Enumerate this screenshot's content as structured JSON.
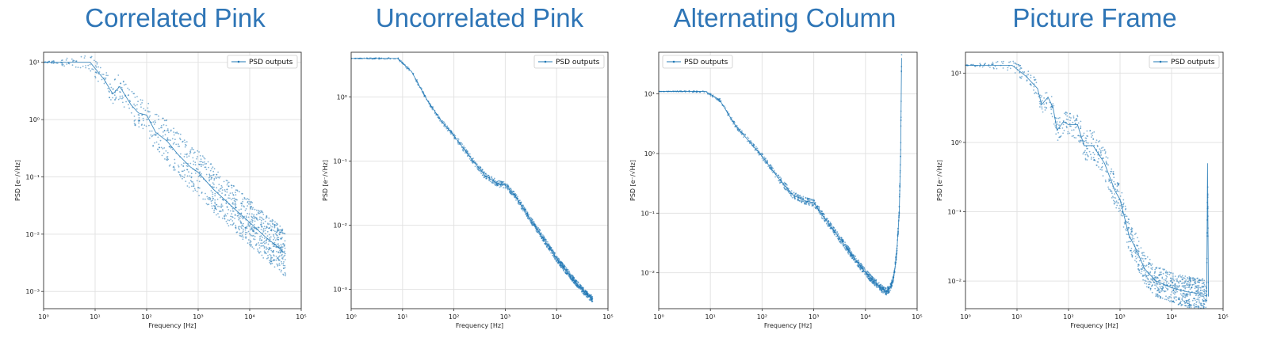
{
  "headings": [
    "Correlated Pink",
    "Uncorrelated Pink",
    "Alternating Column",
    "Picture Frame"
  ],
  "series_color": "#1f77b4",
  "title_color": "#2e75b6",
  "chart_data": [
    {
      "type": "line",
      "title": "",
      "xlabel": "Frequency [Hz]",
      "ylabel": "PSD [e⁻/√Hz]",
      "xscale": "log",
      "yscale": "log",
      "xlim": [
        1,
        100000
      ],
      "ylim": [
        0.0005,
        15
      ],
      "xticks": [
        1,
        10,
        100,
        1000,
        10000,
        100000
      ],
      "yticks": [
        0.001,
        0.01,
        0.1,
        1,
        10
      ],
      "grid": true,
      "legend": "top-right",
      "series": [
        {
          "name": "PSD outputs",
          "x": [
            1,
            8,
            15,
            22,
            30,
            50,
            70,
            100,
            150,
            250,
            400,
            700,
            1000,
            2000,
            5000,
            10000,
            20000,
            35000,
            50000
          ],
          "y": [
            10,
            10,
            5,
            2.8,
            3.8,
            1.8,
            1.3,
            1.2,
            0.6,
            0.42,
            0.25,
            0.15,
            0.12,
            0.06,
            0.028,
            0.016,
            0.009,
            0.006,
            0.0045
          ],
          "spread": 0.8
        }
      ]
    },
    {
      "type": "line",
      "title": "",
      "xlabel": "Frequency [Hz]",
      "ylabel": "PSD [e⁻/√Hz]",
      "xscale": "log",
      "yscale": "log",
      "xlim": [
        1,
        100000
      ],
      "ylim": [
        0.0005,
        5
      ],
      "xticks": [
        1,
        10,
        100,
        1000,
        10000,
        100000
      ],
      "yticks": [
        0.001,
        0.01,
        0.1,
        1
      ],
      "grid": true,
      "legend": "top-right",
      "series": [
        {
          "name": "PSD outputs",
          "x": [
            1,
            8,
            15,
            30,
            60,
            100,
            200,
            400,
            700,
            1000,
            1500,
            2500,
            5000,
            10000,
            20000,
            35000,
            50000
          ],
          "y": [
            4,
            4,
            2.5,
            0.9,
            0.4,
            0.25,
            0.12,
            0.06,
            0.045,
            0.042,
            0.03,
            0.016,
            0.007,
            0.003,
            0.0015,
            0.0009,
            0.0007
          ],
          "spread": 0.1
        }
      ]
    },
    {
      "type": "line",
      "title": "",
      "xlabel": "Frequency [Hz]",
      "ylabel": "PSD [e⁻/√Hz]",
      "xscale": "log",
      "yscale": "log",
      "xlim": [
        1,
        100000
      ],
      "ylim": [
        0.0025,
        50
      ],
      "xticks": [
        1,
        10,
        100,
        1000,
        10000,
        100000
      ],
      "yticks": [
        0.01,
        0.1,
        1,
        10
      ],
      "grid": true,
      "legend": "top-left",
      "series": [
        {
          "name": "PSD outputs",
          "x": [
            1,
            8,
            15,
            30,
            60,
            100,
            200,
            400,
            700,
            1000,
            1500,
            2500,
            5000,
            10000,
            20000,
            25000,
            30000,
            35000,
            40000,
            45000,
            48000,
            50000
          ],
          "y": [
            11,
            11,
            8,
            3,
            1.5,
            0.9,
            0.4,
            0.2,
            0.16,
            0.15,
            0.09,
            0.05,
            0.022,
            0.01,
            0.0055,
            0.0048,
            0.0055,
            0.008,
            0.02,
            0.1,
            1,
            40
          ],
          "spread": 0.12
        }
      ]
    },
    {
      "type": "line",
      "title": "",
      "xlabel": "Frequency [Hz]",
      "ylabel": "PSD [e⁻/√Hz]",
      "xscale": "log",
      "yscale": "log",
      "xlim": [
        1,
        100000
      ],
      "ylim": [
        0.004,
        20
      ],
      "xticks": [
        1,
        10,
        100,
        1000,
        10000,
        100000
      ],
      "yticks": [
        0.01,
        0.1,
        1,
        10
      ],
      "grid": true,
      "legend": "top-right",
      "series": [
        {
          "name": "PSD outputs",
          "x": [
            1,
            8,
            15,
            25,
            30,
            40,
            50,
            60,
            80,
            100,
            150,
            200,
            300,
            500,
            800,
            1000,
            1500,
            2000,
            3000,
            5000,
            10000,
            20000,
            40000,
            48000,
            50000,
            52000
          ],
          "y": [
            13,
            13,
            9,
            6,
            3.5,
            4.5,
            3.2,
            1.5,
            2,
            1.8,
            1.8,
            0.9,
            0.9,
            0.5,
            0.2,
            0.15,
            0.045,
            0.03,
            0.015,
            0.01,
            0.008,
            0.007,
            0.0065,
            0.006,
            0.5,
            0.006
          ],
          "spread": 0.45
        }
      ]
    }
  ]
}
